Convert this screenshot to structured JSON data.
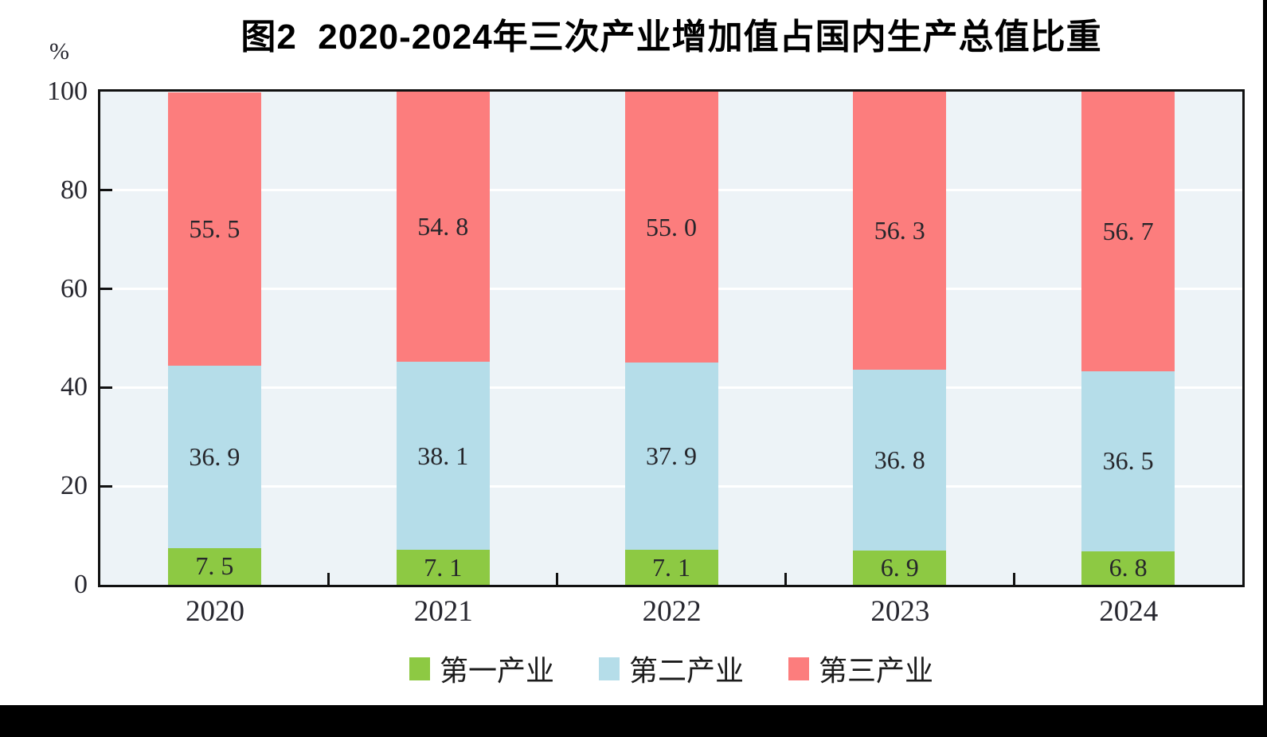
{
  "page": {
    "title": "图2  2020-2024年三次产业增加值占国内生产总值比重",
    "y_unit_label": "%"
  },
  "chart_data": {
    "type": "bar",
    "stacked": true,
    "title": "图2  2020-2024年三次产业增加值占国内生产总值比重",
    "categories": [
      "2020",
      "2021",
      "2022",
      "2023",
      "2024"
    ],
    "series": [
      {
        "name": "第一产业",
        "color": "#8dc943",
        "values": [
          7.5,
          7.1,
          7.1,
          6.9,
          6.8
        ]
      },
      {
        "name": "第二产业",
        "color": "#b5dde9",
        "values": [
          36.9,
          38.1,
          37.9,
          36.8,
          36.5
        ]
      },
      {
        "name": "第三产业",
        "color": "#fc7d7d",
        "values": [
          55.5,
          54.8,
          55.0,
          56.3,
          56.7
        ]
      }
    ],
    "ylabel": "%",
    "ylim": [
      0,
      100
    ],
    "y_ticks": [
      0,
      20,
      40,
      60,
      80,
      100
    ],
    "grid": true,
    "gridline_color": "#ffffff",
    "plot_background": "#edf3f7",
    "legend_position": "bottom",
    "value_label_decimals": 1
  }
}
